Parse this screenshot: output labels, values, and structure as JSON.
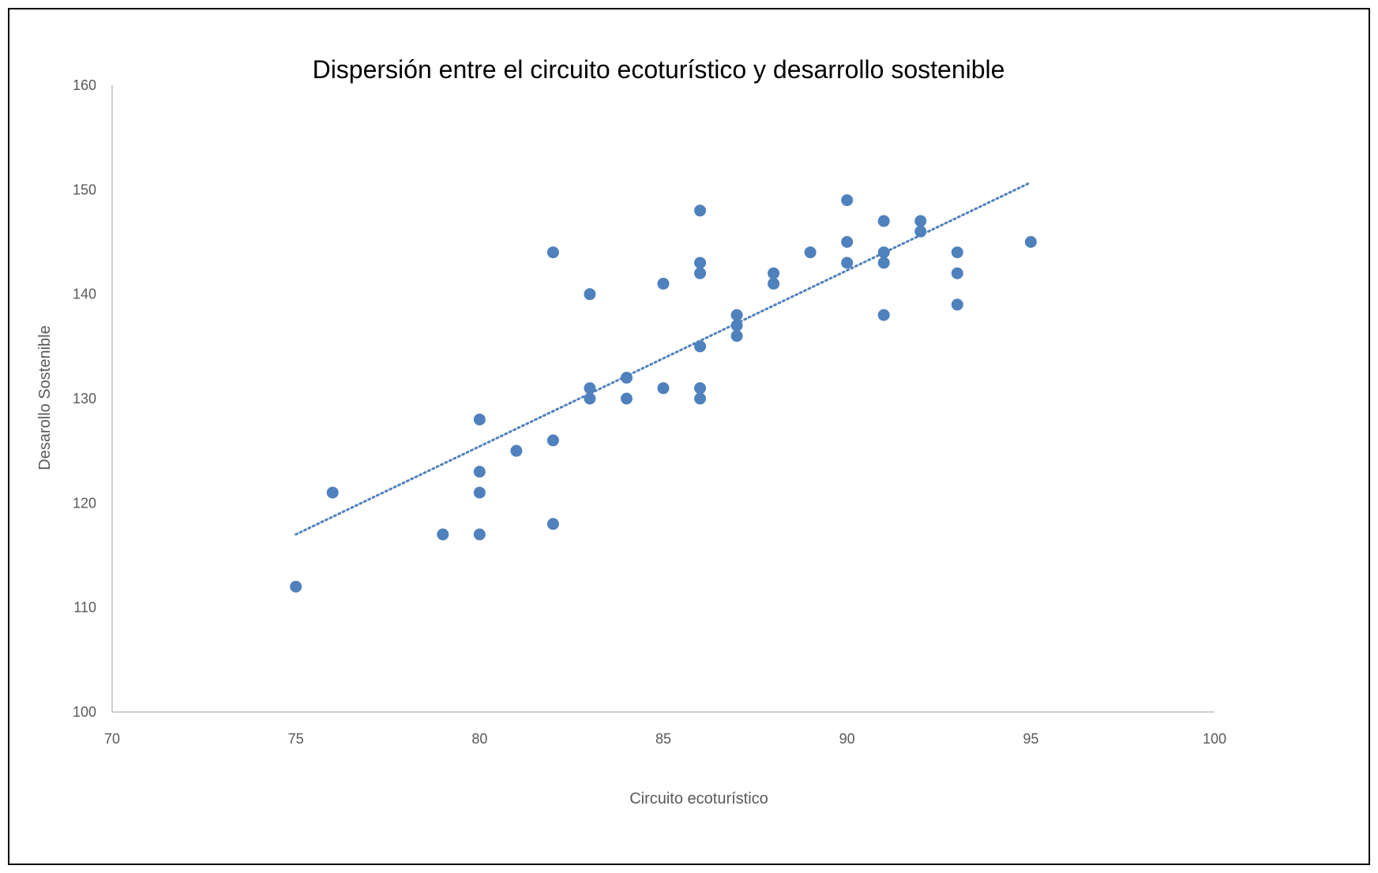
{
  "chart_data": {
    "type": "scatter",
    "title": "Dispersión entre el circuito ecoturístico y desarrollo sostenible",
    "xlabel": "Circuito ecoturístico",
    "ylabel": "Desarollo Sostenible",
    "xlim": [
      70,
      100
    ],
    "ylim": [
      100,
      160
    ],
    "x_ticks": [
      "70",
      "75",
      "80",
      "85",
      "90",
      "95",
      "100"
    ],
    "y_ticks": [
      "100",
      "110",
      "120",
      "130",
      "140",
      "150",
      "160"
    ],
    "grid": false,
    "legend": "none",
    "marker_color": "#4f81bd",
    "trendline": {
      "style": "dotted",
      "color": "#4f81bd",
      "x": [
        75,
        95
      ],
      "y": [
        117,
        150.7
      ]
    },
    "series": [
      {
        "points": [
          [
            75,
            112
          ],
          [
            76,
            121
          ],
          [
            79,
            117
          ],
          [
            80,
            117
          ],
          [
            80,
            121
          ],
          [
            80,
            123
          ],
          [
            80,
            128
          ],
          [
            81,
            125
          ],
          [
            82,
            118
          ],
          [
            82,
            126
          ],
          [
            82,
            144
          ],
          [
            83,
            130
          ],
          [
            83,
            131
          ],
          [
            83,
            140
          ],
          [
            84,
            130
          ],
          [
            84,
            132
          ],
          [
            85,
            131
          ],
          [
            85,
            141
          ],
          [
            86,
            130
          ],
          [
            86,
            131
          ],
          [
            86,
            135
          ],
          [
            86,
            142
          ],
          [
            86,
            143
          ],
          [
            86,
            148
          ],
          [
            87,
            136
          ],
          [
            87,
            137
          ],
          [
            87,
            138
          ],
          [
            88,
            141
          ],
          [
            88,
            142
          ],
          [
            89,
            144
          ],
          [
            90,
            143
          ],
          [
            90,
            145
          ],
          [
            90,
            149
          ],
          [
            91,
            138
          ],
          [
            91,
            143
          ],
          [
            91,
            144
          ],
          [
            91,
            147
          ],
          [
            92,
            146
          ],
          [
            92,
            147
          ],
          [
            93,
            139
          ],
          [
            93,
            142
          ],
          [
            93,
            144
          ],
          [
            95,
            145
          ]
        ]
      }
    ]
  }
}
